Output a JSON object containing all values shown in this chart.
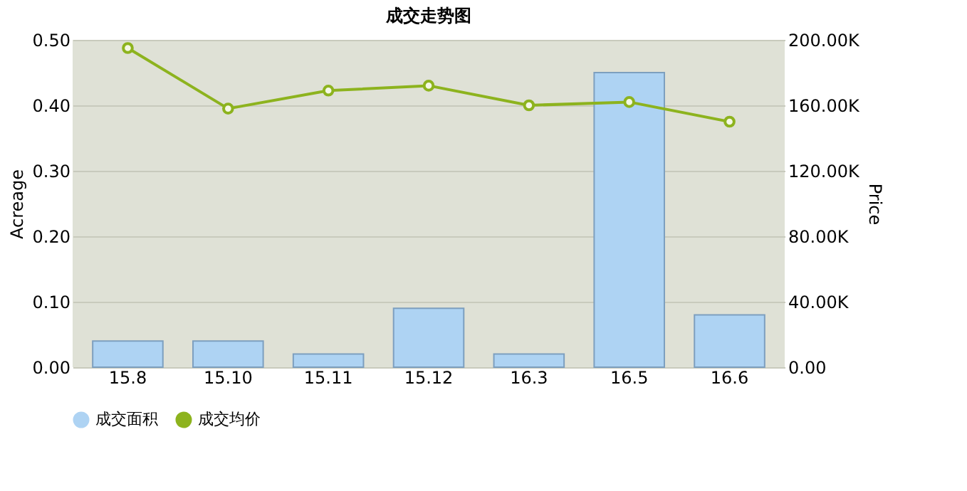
{
  "chart_data": {
    "type": "bar",
    "title": "成交走势图",
    "ylabel": "Acreage",
    "y2label": "Price",
    "categories": [
      "15.8",
      "15.10",
      "15.11",
      "15.12",
      "16.3",
      "16.5",
      "16.6"
    ],
    "series": [
      {
        "name": "成交面积",
        "color": "#aed3f3",
        "values": [
          0.04,
          0.04,
          0.02,
          0.09,
          0.02,
          0.45,
          0.08
        ]
      },
      {
        "name": "成交均价",
        "type": "line",
        "axis": "y2",
        "color": "#8db31e",
        "marker": "circle",
        "values": [
          195000,
          158000,
          169000,
          172000,
          160000,
          162000,
          150000
        ]
      }
    ],
    "ylim": [
      0,
      0.5
    ],
    "yticks": [
      {
        "value": 0,
        "label": "0.00"
      },
      {
        "value": 0.1,
        "label": "0.10"
      },
      {
        "value": 0.2,
        "label": "0.20"
      },
      {
        "value": 0.3,
        "label": "0.30"
      },
      {
        "value": 0.4,
        "label": "0.40"
      },
      {
        "value": 0.5,
        "label": "0.50"
      }
    ],
    "y2lim": [
      0,
      200000
    ],
    "y2ticks": [
      {
        "value": 0,
        "label": "0.00"
      },
      {
        "value": 40000,
        "label": "40.00K"
      },
      {
        "value": 80000,
        "label": "80.00K"
      },
      {
        "value": 120000,
        "label": "120.00K"
      },
      {
        "value": 160000,
        "label": "160.00K"
      },
      {
        "value": 200000,
        "label": "200.00K"
      }
    ],
    "grid": "y",
    "legend": "bottom"
  }
}
